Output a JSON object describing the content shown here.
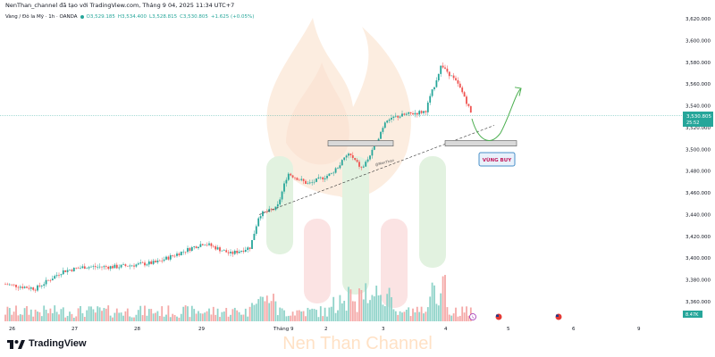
{
  "header": {
    "publisher_line": "NenThan_channel đã tạo với TradingView.com, Tháng 9 04, 2025 11:34 UTC+7",
    "symbol": "Vàng / Đô la Mỹ · 1h · OANDA",
    "open": "O3,529.185",
    "high": "H3,534.400",
    "low": "L3,528.815",
    "close": "C3,530.805",
    "change": "+1.625 (+0.05%)"
  },
  "price_axis": {
    "ticks": [
      "3,620.000",
      "3,600.000",
      "3,580.000",
      "3,560.000",
      "3,540.000",
      "3,520.000",
      "3,500.000",
      "3,480.000",
      "3,460.000",
      "3,440.000",
      "3,420.000",
      "3,400.000",
      "3,380.000",
      "3,360.000"
    ],
    "current_price": "3,530.805",
    "countdown": "25:52",
    "volume_badge": "8.47K"
  },
  "time_axis": {
    "labels": [
      "26",
      "27",
      "28",
      "29",
      "Tháng 9",
      "2",
      "3",
      "4",
      "5",
      "6",
      "9"
    ]
  },
  "annotations": {
    "buy_zone_label": "VÙNG BUY",
    "trendline_author": "@NenThan"
  },
  "footer": {
    "brand": "TradingView",
    "watermark": "Nen Than Channel"
  },
  "colors": {
    "up": "#26a69a",
    "down": "#ef5350",
    "buy_zone_border": "#4a90c8",
    "arrow": "#4caf50"
  },
  "chart_data": {
    "type": "candlestick",
    "title": "Vàng / Đô la Mỹ · 1h · OANDA",
    "ylim": [
      3350,
      3625
    ],
    "y_ticks": [
      3360,
      3380,
      3400,
      3420,
      3440,
      3460,
      3480,
      3500,
      3520,
      3540,
      3560,
      3580,
      3600,
      3620
    ],
    "x_labels": [
      "26",
      "27",
      "28",
      "29",
      "Tháng 9",
      "2",
      "3",
      "4",
      "5",
      "6",
      "9"
    ],
    "price_path": [
      {
        "x": "26",
        "y": 3380
      },
      {
        "x": "27",
        "y": 3388
      },
      {
        "x": "28",
        "y": 3402
      },
      {
        "x": "29",
        "y": 3413
      },
      {
        "x": "29 (late)",
        "y": 3405
      },
      {
        "x": "Tháng 9",
        "y": 3447
      },
      {
        "x": "Tháng 9 (late)",
        "y": 3478
      },
      {
        "x": "2",
        "y": 3475
      },
      {
        "x": "2 (mid)",
        "y": 3490
      },
      {
        "x": "2 (late)",
        "y": 3480
      },
      {
        "x": "3",
        "y": 3510
      },
      {
        "x": "3 (mid)",
        "y": 3532
      },
      {
        "x": "3 (late)",
        "y": 3535
      },
      {
        "x": "4",
        "y": 3578
      },
      {
        "x": "4 (mid)",
        "y": 3560
      },
      {
        "x": "4 (last)",
        "y": 3530.805
      }
    ],
    "last": {
      "open": 3529.185,
      "high": 3534.4,
      "low": 3528.815,
      "close": 3530.805,
      "change": 1.625,
      "change_pct": 0.05
    },
    "support_zones": [
      {
        "price_low": 3503,
        "price_high": 3507
      },
      {
        "price_low": 3503,
        "price_high": 3508
      }
    ],
    "trendline": {
      "from": {
        "x": "Tháng 9",
        "y": 3440
      },
      "to": {
        "x": "4 (last)",
        "y": 3520
      }
    },
    "projection": {
      "dip_to": 3505,
      "target": 3555
    },
    "volume_last": "8.47K",
    "grid": false
  }
}
